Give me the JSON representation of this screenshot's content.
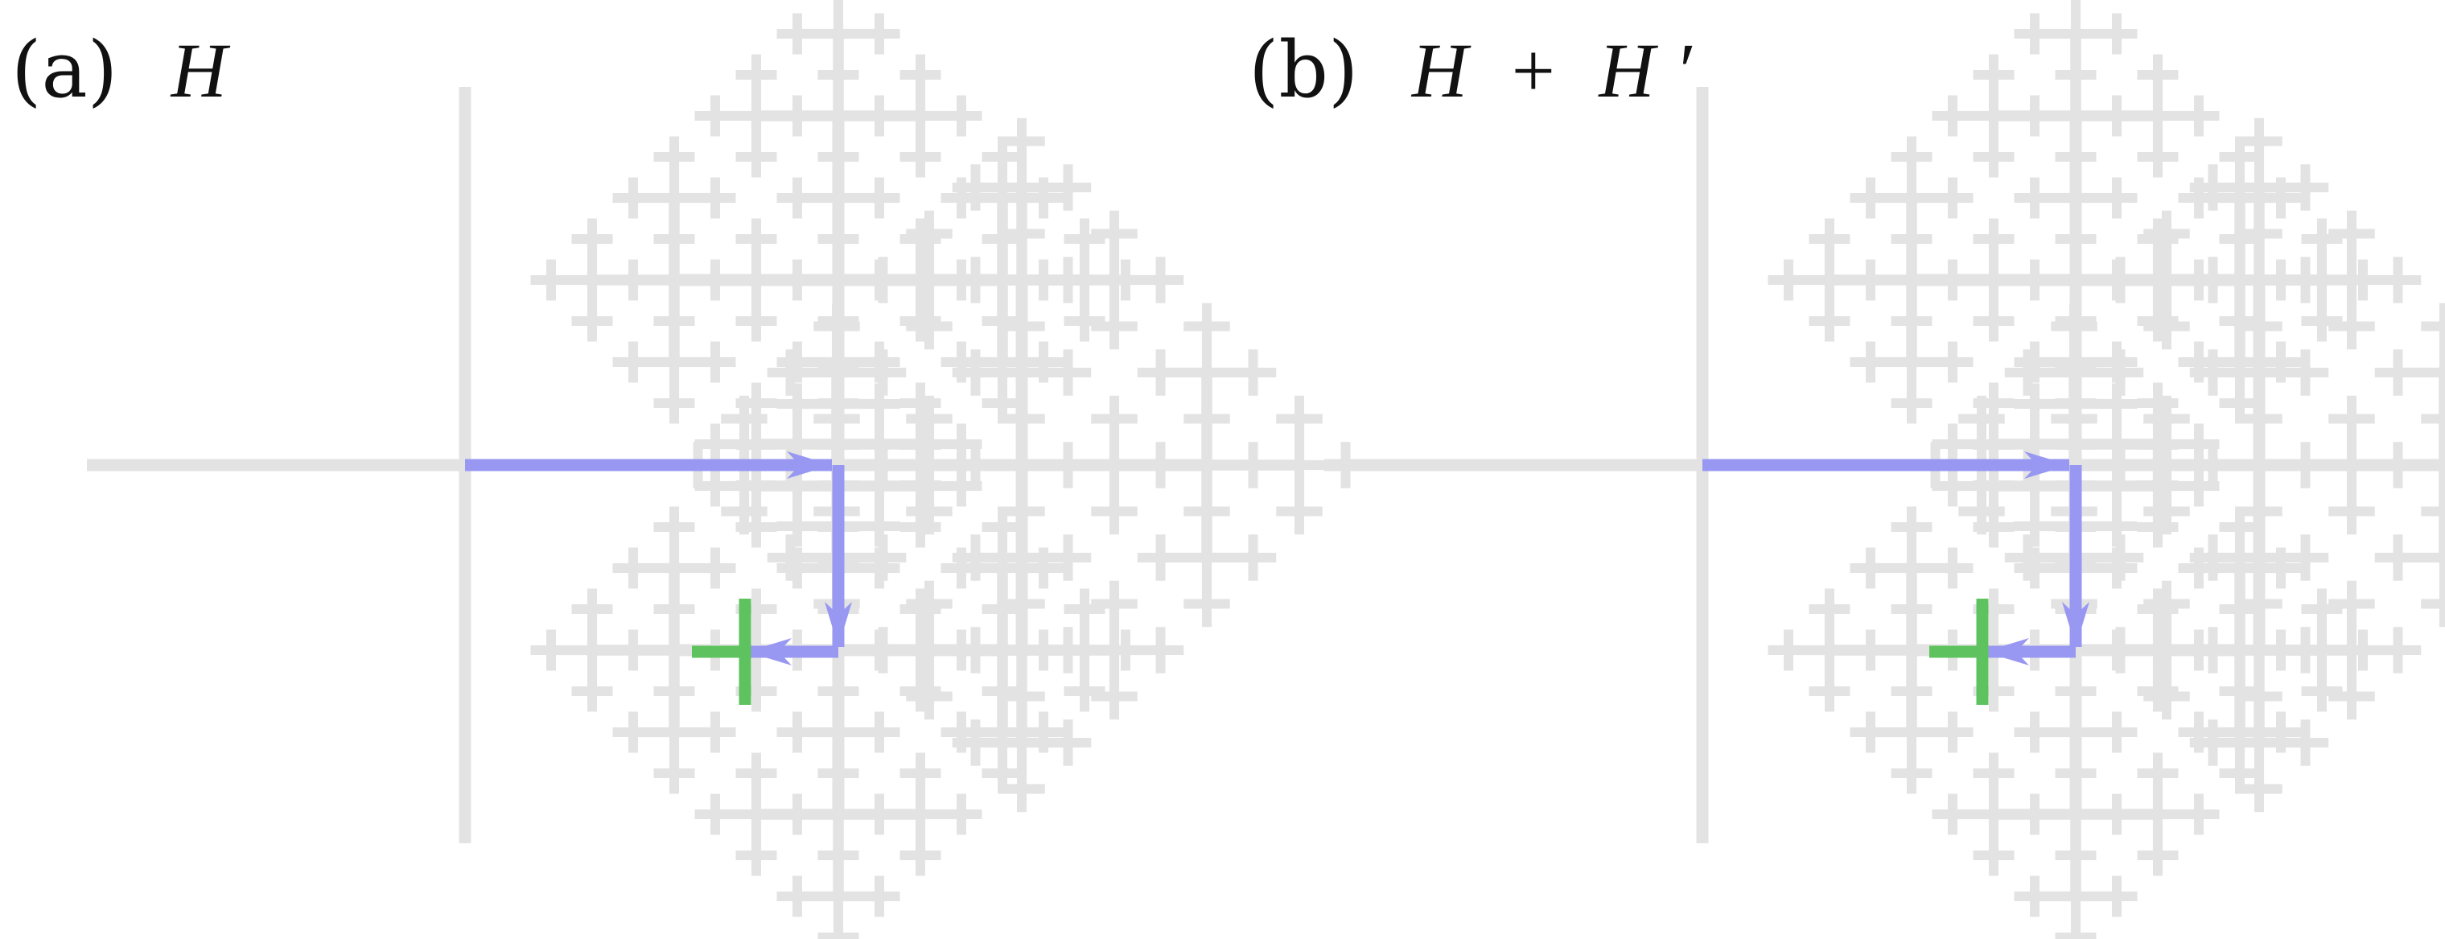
{
  "figure": {
    "colors": {
      "tree": "#e3e3e3",
      "path": "#9898f2",
      "target": "#5ec35e"
    },
    "panels": [
      {
        "id": "a",
        "tag": "(a)",
        "symbol": "H",
        "operator": "",
        "symbol2": "",
        "prime": ""
      },
      {
        "id": "b",
        "tag": "(b)",
        "symbol": "H",
        "operator": "+",
        "symbol2": "H",
        "prime": "′"
      }
    ]
  }
}
